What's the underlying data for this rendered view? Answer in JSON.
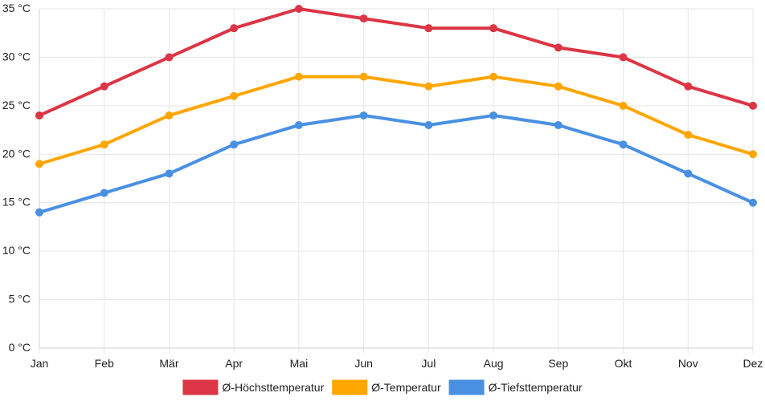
{
  "chart_data": {
    "type": "line",
    "title": "",
    "xlabel": "",
    "ylabel": "",
    "categories": [
      "Jan",
      "Feb",
      "Mär",
      "Apr",
      "Mai",
      "Jun",
      "Jul",
      "Aug",
      "Sep",
      "Okt",
      "Nov",
      "Dez"
    ],
    "ylim": [
      0,
      35
    ],
    "yticks": [
      0,
      5,
      10,
      15,
      20,
      25,
      30,
      35
    ],
    "ytick_labels": [
      "0 °C",
      "5 °C",
      "10 °C",
      "15 °C",
      "20 °C",
      "25 °C",
      "30 °C",
      "35 °C"
    ],
    "grid": true,
    "legend_position": "bottom-center",
    "series": [
      {
        "name": "Ø-Höchsttemperatur",
        "color": "#dc3545",
        "values": [
          24,
          27,
          30,
          33,
          35,
          34,
          33,
          33,
          31,
          30,
          27,
          25
        ]
      },
      {
        "name": "Ø-Temperatur",
        "color": "#ffa600",
        "values": [
          19,
          21,
          24,
          26,
          28,
          28,
          27,
          28,
          27,
          25,
          22,
          20
        ]
      },
      {
        "name": "Ø-Tiefsttemperatur",
        "color": "#4a90e2",
        "values": [
          14,
          16,
          18,
          21,
          23,
          24,
          23,
          24,
          23,
          21,
          18,
          15
        ]
      }
    ]
  }
}
